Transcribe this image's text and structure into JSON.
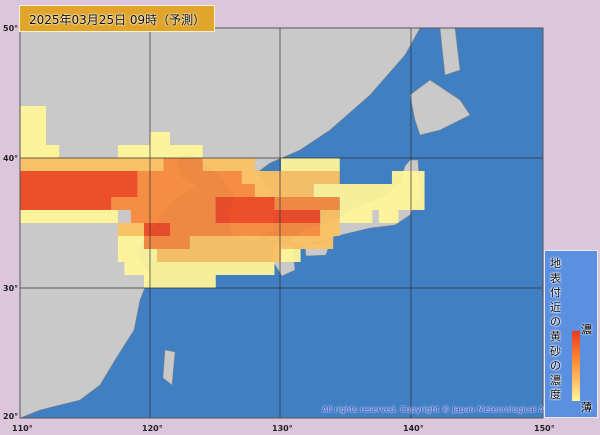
{
  "header": {
    "datetime": "2025年03月25日 09時（予測）"
  },
  "axes": {
    "lon_labels": [
      "110°",
      "120°",
      "130°",
      "140°",
      "150°"
    ],
    "lat_labels": [
      "50°",
      "40°",
      "30°",
      "20°"
    ]
  },
  "legend": {
    "title": "地表付近の黄砂の濃度",
    "high_label": "濃",
    "low_label": "薄"
  },
  "copyright": "All rights reserved. Copyright © Japan Meteorological Agency",
  "colors": {
    "sea": "#3f7fc2",
    "land": "#c9c9c9",
    "levels": [
      "#fff59a",
      "#fdc261",
      "#f88a3c",
      "#ee4a23"
    ]
  },
  "dust_concentration_levels": [
    {
      "lat": 43,
      "spans": [
        [
          110,
          112,
          1
        ]
      ]
    },
    {
      "lat": 42,
      "spans": [
        [
          110,
          112,
          1
        ]
      ]
    },
    {
      "lat": 41,
      "spans": [
        [
          110,
          112,
          1
        ],
        [
          120,
          121.5,
          1
        ]
      ]
    },
    {
      "lat": 40,
      "spans": [
        [
          110,
          113,
          1
        ],
        [
          117.5,
          124,
          1
        ]
      ]
    },
    {
      "lat": 39,
      "spans": [
        [
          110,
          117,
          2
        ],
        [
          117,
          121,
          2
        ],
        [
          121,
          124,
          3
        ],
        [
          124,
          128,
          2
        ],
        [
          130,
          134.5,
          1
        ]
      ]
    },
    {
      "lat": 38,
      "spans": [
        [
          110,
          119,
          4
        ],
        [
          119,
          127,
          3
        ],
        [
          127,
          134.5,
          2
        ],
        [
          138.5,
          141,
          1
        ]
      ]
    },
    {
      "lat": 37,
      "spans": [
        [
          110,
          119,
          4
        ],
        [
          119,
          128,
          3
        ],
        [
          128,
          132.5,
          2
        ],
        [
          132.5,
          141,
          1
        ]
      ]
    },
    {
      "lat": 36,
      "spans": [
        [
          110,
          117,
          4
        ],
        [
          117,
          125,
          3
        ],
        [
          125,
          129.5,
          4
        ],
        [
          129.5,
          134.5,
          3
        ],
        [
          134.5,
          141,
          1
        ]
      ]
    },
    {
      "lat": 35,
      "spans": [
        [
          110,
          117.5,
          1
        ],
        [
          118.5,
          125,
          3
        ],
        [
          125,
          133,
          4
        ],
        [
          133,
          134.5,
          2
        ],
        [
          134.5,
          137,
          1
        ],
        [
          137.5,
          139,
          1
        ]
      ]
    },
    {
      "lat": 34,
      "spans": [
        [
          117.5,
          119.5,
          2
        ],
        [
          119.5,
          121.5,
          4
        ],
        [
          121.5,
          133,
          3
        ],
        [
          133,
          134.5,
          2
        ]
      ]
    },
    {
      "lat": 33,
      "spans": [
        [
          117.5,
          119.5,
          1
        ],
        [
          119.5,
          123,
          3
        ],
        [
          123,
          134,
          2
        ]
      ]
    },
    {
      "lat": 32,
      "spans": [
        [
          117.5,
          120.5,
          1
        ],
        [
          120.5,
          130,
          2
        ],
        [
          130,
          131.5,
          1
        ]
      ]
    },
    {
      "lat": 31,
      "spans": [
        [
          118,
          129.5,
          1
        ]
      ]
    },
    {
      "lat": 30,
      "spans": [
        [
          119.5,
          125,
          1
        ]
      ]
    }
  ]
}
